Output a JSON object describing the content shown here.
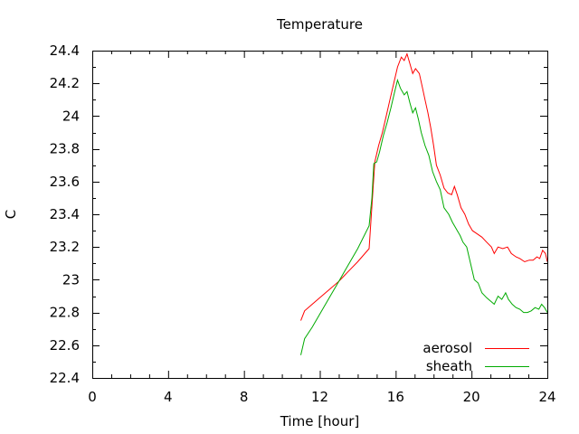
{
  "chart_data": {
    "type": "line",
    "title": "Temperature",
    "xlabel": "Time [hour]",
    "ylabel": "C",
    "xlim": [
      0,
      24
    ],
    "ylim": [
      22.4,
      24.4
    ],
    "xticks": [
      0,
      4,
      8,
      12,
      16,
      20,
      24
    ],
    "xtick_labels": [
      "0",
      "4",
      "8",
      "12",
      "16",
      "20",
      "24"
    ],
    "yticks": [
      22.4,
      22.6,
      22.8,
      23.0,
      23.2,
      23.4,
      23.6,
      23.8,
      24.0,
      24.2,
      24.4
    ],
    "ytick_labels": [
      "22.4",
      "22.6",
      "22.8",
      "23",
      "23.2",
      "23.4",
      "23.6",
      "23.8",
      "24",
      "24.2",
      "24.4"
    ],
    "grid": false,
    "legend_position": "bottom-right",
    "series": [
      {
        "name": "aerosol",
        "color": "#ff0000",
        "points": [
          [
            11.0,
            22.75
          ],
          [
            11.2,
            22.81
          ],
          [
            11.6,
            22.85
          ],
          [
            12.0,
            22.89
          ],
          [
            12.5,
            22.94
          ],
          [
            13.0,
            22.99
          ],
          [
            13.5,
            23.05
          ],
          [
            14.0,
            23.11
          ],
          [
            14.6,
            23.19
          ],
          [
            14.75,
            23.45
          ],
          [
            14.9,
            23.72
          ],
          [
            15.1,
            23.82
          ],
          [
            15.3,
            23.9
          ],
          [
            15.5,
            24.0
          ],
          [
            15.7,
            24.1
          ],
          [
            15.9,
            24.2
          ],
          [
            16.1,
            24.3
          ],
          [
            16.3,
            24.36
          ],
          [
            16.45,
            24.34
          ],
          [
            16.6,
            24.38
          ],
          [
            16.75,
            24.32
          ],
          [
            16.9,
            24.26
          ],
          [
            17.05,
            24.29
          ],
          [
            17.25,
            24.26
          ],
          [
            17.4,
            24.18
          ],
          [
            17.55,
            24.1
          ],
          [
            17.7,
            24.02
          ],
          [
            17.85,
            23.93
          ],
          [
            18.0,
            23.82
          ],
          [
            18.15,
            23.7
          ],
          [
            18.35,
            23.64
          ],
          [
            18.55,
            23.56
          ],
          [
            18.75,
            23.53
          ],
          [
            18.95,
            23.52
          ],
          [
            19.1,
            23.57
          ],
          [
            19.25,
            23.52
          ],
          [
            19.45,
            23.44
          ],
          [
            19.65,
            23.4
          ],
          [
            19.85,
            23.34
          ],
          [
            20.05,
            23.3
          ],
          [
            20.3,
            23.28
          ],
          [
            20.55,
            23.26
          ],
          [
            20.8,
            23.23
          ],
          [
            21.05,
            23.2
          ],
          [
            21.2,
            23.16
          ],
          [
            21.4,
            23.2
          ],
          [
            21.65,
            23.19
          ],
          [
            21.9,
            23.2
          ],
          [
            22.1,
            23.16
          ],
          [
            22.35,
            23.14
          ],
          [
            22.55,
            23.13
          ],
          [
            22.8,
            23.11
          ],
          [
            23.05,
            23.12
          ],
          [
            23.25,
            23.12
          ],
          [
            23.45,
            23.14
          ],
          [
            23.6,
            23.13
          ],
          [
            23.75,
            23.18
          ],
          [
            23.9,
            23.16
          ],
          [
            24.0,
            23.11
          ]
        ]
      },
      {
        "name": "sheath",
        "color": "#00aa00",
        "points": [
          [
            11.0,
            22.54
          ],
          [
            11.2,
            22.64
          ],
          [
            11.6,
            22.71
          ],
          [
            12.0,
            22.79
          ],
          [
            12.5,
            22.89
          ],
          [
            13.0,
            22.99
          ],
          [
            13.5,
            23.09
          ],
          [
            14.0,
            23.19
          ],
          [
            14.6,
            23.33
          ],
          [
            14.75,
            23.5
          ],
          [
            14.85,
            23.71
          ],
          [
            15.0,
            23.72
          ],
          [
            15.15,
            23.78
          ],
          [
            15.35,
            23.88
          ],
          [
            15.55,
            23.96
          ],
          [
            15.75,
            24.05
          ],
          [
            15.95,
            24.15
          ],
          [
            16.1,
            24.22
          ],
          [
            16.25,
            24.17
          ],
          [
            16.45,
            24.13
          ],
          [
            16.6,
            24.15
          ],
          [
            16.75,
            24.08
          ],
          [
            16.9,
            24.02
          ],
          [
            17.05,
            24.05
          ],
          [
            17.2,
            23.98
          ],
          [
            17.35,
            23.9
          ],
          [
            17.55,
            23.82
          ],
          [
            17.75,
            23.76
          ],
          [
            17.95,
            23.66
          ],
          [
            18.15,
            23.6
          ],
          [
            18.35,
            23.55
          ],
          [
            18.55,
            23.44
          ],
          [
            18.8,
            23.4
          ],
          [
            19.0,
            23.35
          ],
          [
            19.2,
            23.31
          ],
          [
            19.4,
            23.27
          ],
          [
            19.55,
            23.23
          ],
          [
            19.75,
            23.2
          ],
          [
            19.95,
            23.1
          ],
          [
            20.15,
            23.0
          ],
          [
            20.35,
            22.98
          ],
          [
            20.55,
            22.92
          ],
          [
            20.8,
            22.89
          ],
          [
            21.0,
            22.87
          ],
          [
            21.2,
            22.85
          ],
          [
            21.4,
            22.9
          ],
          [
            21.6,
            22.88
          ],
          [
            21.8,
            22.92
          ],
          [
            21.95,
            22.88
          ],
          [
            22.15,
            22.85
          ],
          [
            22.35,
            22.83
          ],
          [
            22.55,
            22.82
          ],
          [
            22.75,
            22.8
          ],
          [
            22.95,
            22.8
          ],
          [
            23.15,
            22.81
          ],
          [
            23.35,
            22.83
          ],
          [
            23.55,
            22.82
          ],
          [
            23.7,
            22.85
          ],
          [
            23.85,
            22.83
          ],
          [
            24.0,
            22.8
          ]
        ]
      }
    ]
  }
}
